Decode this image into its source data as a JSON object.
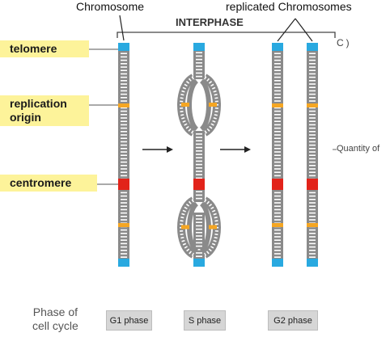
{
  "title_chromosome": "Chromosome",
  "title_replicated": "replicated Chromosomes",
  "interphase": "INTERPHASE",
  "bracket_fragment": "C)",
  "quantity_label": "Quantity of",
  "labels": {
    "telomere": "telomere",
    "replication_line1": "replication",
    "replication_line2": "origin",
    "centromere": "centromere"
  },
  "phase_caption_line1": "Phase of",
  "phase_caption_line2": "cell cycle",
  "phases": [
    "G1 phase",
    "S phase",
    "G2 phase"
  ],
  "colors": {
    "chromatid": "#8a8a8a",
    "telomere": "#29a9e0",
    "origin": "#f5a623",
    "centromere": "#e2231a",
    "label_bg": "#fdf39a"
  }
}
